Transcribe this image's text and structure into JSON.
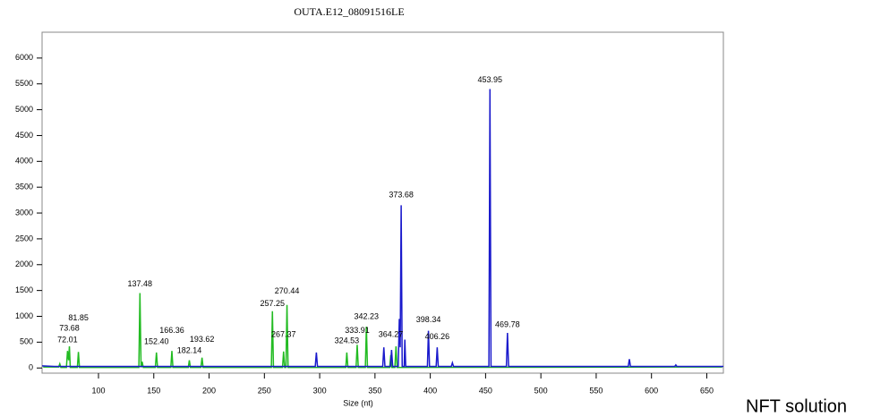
{
  "chart_data": {
    "type": "line",
    "title": "OUTA.E12_08091516LE",
    "x_label": "Size (nt)",
    "xlim": [
      49,
      665
    ],
    "ylim": [
      -100,
      6500
    ],
    "xticks": [
      100,
      150,
      200,
      250,
      300,
      350,
      400,
      450,
      500,
      550,
      600,
      650
    ],
    "yticks": [
      0,
      500,
      1000,
      1500,
      2000,
      2500,
      3000,
      3500,
      4000,
      4500,
      5000,
      5500,
      6000
    ],
    "series": [
      {
        "name": "green",
        "color": "#22bb22",
        "x": [
          50,
          64,
          65,
          66,
          71,
          72,
          73,
          73.7,
          74.5,
          80.9,
          81.85,
          82.8,
          136.5,
          137.48,
          138.5,
          139.5,
          140.5,
          151.4,
          152.4,
          153.4,
          165.4,
          166.36,
          167.3,
          181.2,
          182.14,
          183.1,
          192.6,
          193.62,
          194.6,
          256.3,
          257.25,
          258.2,
          266.4,
          267.37,
          268.3,
          269.5,
          270.44,
          271.4,
          323.6,
          324.53,
          325.5,
          332.9,
          333.91,
          334.9,
          341.3,
          342.23,
          343.2,
          363.3,
          364.27,
          365.2,
          368,
          369,
          370,
          664
        ],
        "values": [
          20,
          20,
          80,
          10,
          10,
          330,
          150,
          420,
          10,
          10,
          310,
          10,
          10,
          1450,
          10,
          120,
          10,
          10,
          300,
          10,
          10,
          330,
          10,
          10,
          150,
          10,
          10,
          200,
          10,
          10,
          1100,
          10,
          10,
          320,
          10,
          10,
          1220,
          10,
          10,
          300,
          10,
          10,
          450,
          10,
          10,
          800,
          10,
          10,
          250,
          10,
          10,
          420,
          10,
          20
        ]
      },
      {
        "name": "blue",
        "color": "#1a1acc",
        "x": [
          49,
          60,
          296,
          297,
          298,
          357,
          358,
          359,
          364,
          365,
          366,
          371,
          372,
          372.8,
          373.68,
          374.6,
          376.4,
          377,
          377.8,
          397.4,
          398.34,
          399.3,
          405.3,
          406.26,
          407.2,
          419,
          420,
          421,
          453,
          453.95,
          454.9,
          468.8,
          469.78,
          470.8,
          579,
          580,
          581,
          621,
          622,
          623,
          665
        ],
        "values": [
          40,
          30,
          30,
          300,
          30,
          30,
          400,
          30,
          30,
          350,
          30,
          30,
          950,
          400,
          3150,
          30,
          30,
          550,
          30,
          30,
          720,
          30,
          30,
          400,
          30,
          30,
          100,
          30,
          30,
          5400,
          30,
          30,
          680,
          30,
          30,
          170,
          30,
          30,
          60,
          30,
          30
        ]
      }
    ],
    "peak_labels": [
      {
        "x": 72.01,
        "y": 535,
        "label": "72.01"
      },
      {
        "x": 73.68,
        "y": 760,
        "label": "73.68"
      },
      {
        "x": 81.85,
        "y": 965,
        "label": "81.85"
      },
      {
        "x": 137.48,
        "y": 1620,
        "label": "137.48"
      },
      {
        "x": 152.4,
        "y": 500,
        "label": "152.40"
      },
      {
        "x": 166.36,
        "y": 725,
        "label": "166.36"
      },
      {
        "x": 182.14,
        "y": 330,
        "label": "182.14"
      },
      {
        "x": 193.62,
        "y": 550,
        "label": "193.62"
      },
      {
        "x": 257.25,
        "y": 1240,
        "label": "257.25"
      },
      {
        "x": 267.37,
        "y": 640,
        "label": "267.37"
      },
      {
        "x": 270.44,
        "y": 1480,
        "label": "270.44"
      },
      {
        "x": 324.53,
        "y": 520,
        "label": "324.53"
      },
      {
        "x": 333.91,
        "y": 725,
        "label": "333.91"
      },
      {
        "x": 342.23,
        "y": 985,
        "label": "342.23"
      },
      {
        "x": 364.27,
        "y": 640,
        "label": "364.27"
      },
      {
        "x": 373.68,
        "y": 3345,
        "label": "373.68"
      },
      {
        "x": 398.34,
        "y": 930,
        "label": "398.34"
      },
      {
        "x": 406.26,
        "y": 600,
        "label": "406.26"
      },
      {
        "x": 453.95,
        "y": 5570,
        "label": "453.95"
      },
      {
        "x": 469.78,
        "y": 830,
        "label": "469.78"
      }
    ]
  },
  "caption": "NFT solution"
}
